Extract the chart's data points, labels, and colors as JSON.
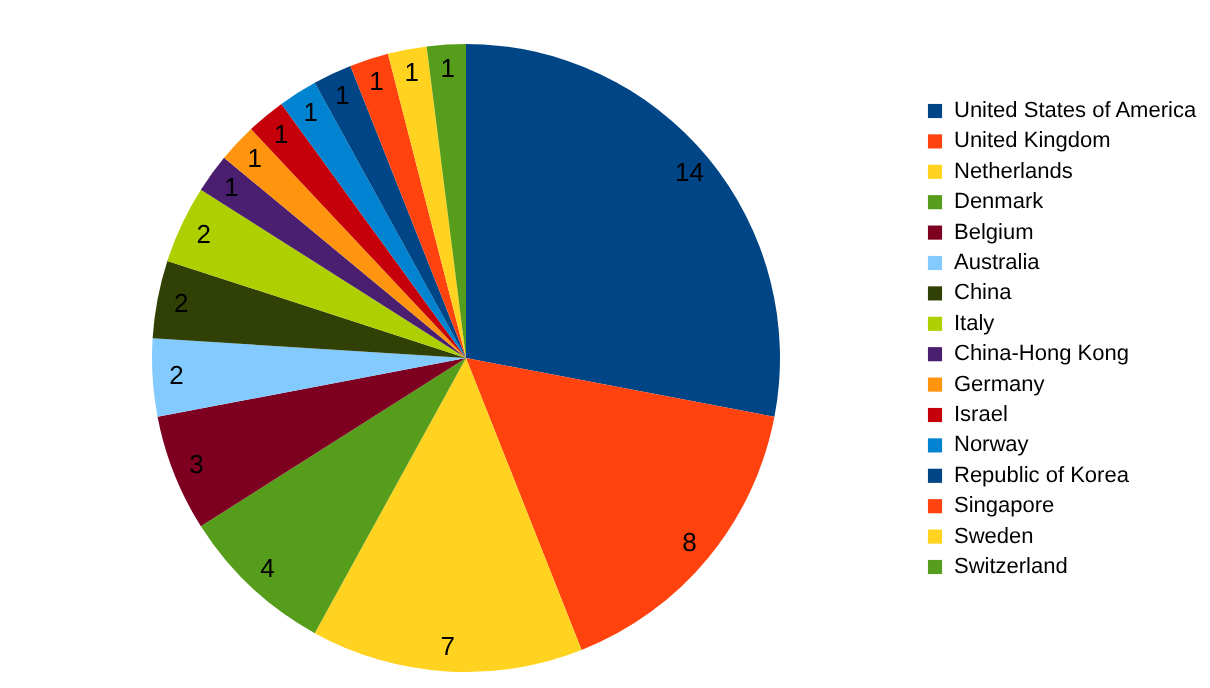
{
  "chart_data": {
    "type": "pie",
    "categories": [
      "United States of America",
      "United Kingdom",
      "Netherlands",
      "Denmark",
      "Belgium",
      "Australia",
      "China",
      "Italy",
      "China-Hong Kong",
      "Germany",
      "Israel",
      "Norway",
      "Republic of Korea",
      "Singapore",
      "Sweden",
      "Switzerland"
    ],
    "values": [
      14,
      8,
      7,
      4,
      3,
      2,
      2,
      2,
      1,
      1,
      1,
      1,
      1,
      1,
      1,
      1
    ],
    "colors": [
      "#004586",
      "#ff420e",
      "#ffd320",
      "#579d1c",
      "#7e0021",
      "#83caff",
      "#314004",
      "#aecf00",
      "#4b1f6f",
      "#ff950e",
      "#c5000b",
      "#0084d1",
      "#004586",
      "#ff420e",
      "#ffd320",
      "#579d1c"
    ],
    "data_labels": true,
    "legend": "right"
  }
}
